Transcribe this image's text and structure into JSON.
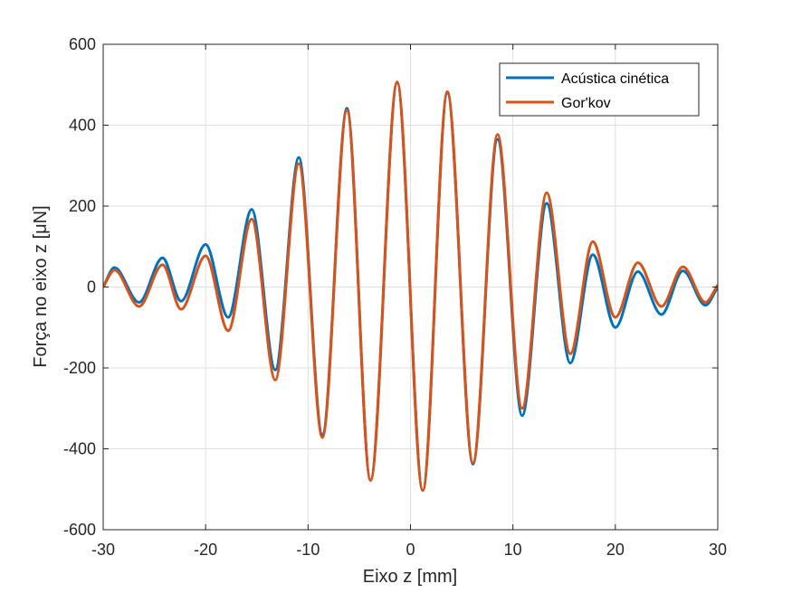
{
  "chart_data": {
    "type": "line",
    "title": "",
    "xlabel": "Eixo z [mm]",
    "ylabel": "Força no eixo z [μN]",
    "xlim": [
      -30,
      30
    ],
    "ylim": [
      -600,
      600
    ],
    "xticks": [
      -30,
      -20,
      -10,
      0,
      10,
      20,
      30
    ],
    "yticks": [
      -600,
      -400,
      -200,
      0,
      200,
      400,
      600
    ],
    "grid": true,
    "legend_position": "top-right",
    "series": [
      {
        "name": "Acústica cinética",
        "color": "#0072BD",
        "x": [
          -30,
          -28.9,
          -26.5,
          -24.2,
          -22.4,
          -20.0,
          -17.8,
          -15.5,
          -13.2,
          -10.9,
          -8.6,
          -6.2,
          -3.9,
          -1.3,
          1.2,
          3.6,
          6.1,
          8.5,
          10.9,
          13.3,
          15.6,
          17.8,
          20.0,
          22.2,
          24.5,
          26.6,
          28.8,
          30
        ],
        "y": [
          0,
          48,
          -38,
          72,
          -35,
          105,
          -75,
          192,
          -205,
          320,
          -365,
          442,
          -478,
          505,
          -503,
          480,
          -438,
          365,
          -318,
          207,
          -188,
          80,
          -100,
          38,
          -68,
          40,
          -45,
          0
        ]
      },
      {
        "name": "Gor'kov",
        "color": "#D95319",
        "x": [
          -30,
          -28.9,
          -26.5,
          -24.2,
          -22.4,
          -20.0,
          -17.8,
          -15.5,
          -13.2,
          -10.9,
          -8.6,
          -6.2,
          -3.9,
          -1.3,
          1.2,
          3.6,
          6.1,
          8.5,
          10.9,
          13.3,
          15.6,
          17.8,
          20.0,
          22.2,
          24.5,
          26.6,
          28.8,
          30
        ],
        "y": [
          0,
          42,
          -48,
          55,
          -55,
          77,
          -108,
          168,
          -230,
          305,
          -372,
          437,
          -478,
          507,
          -503,
          483,
          -435,
          377,
          -300,
          233,
          -165,
          112,
          -75,
          60,
          -48,
          50,
          -38,
          5
        ]
      }
    ]
  }
}
